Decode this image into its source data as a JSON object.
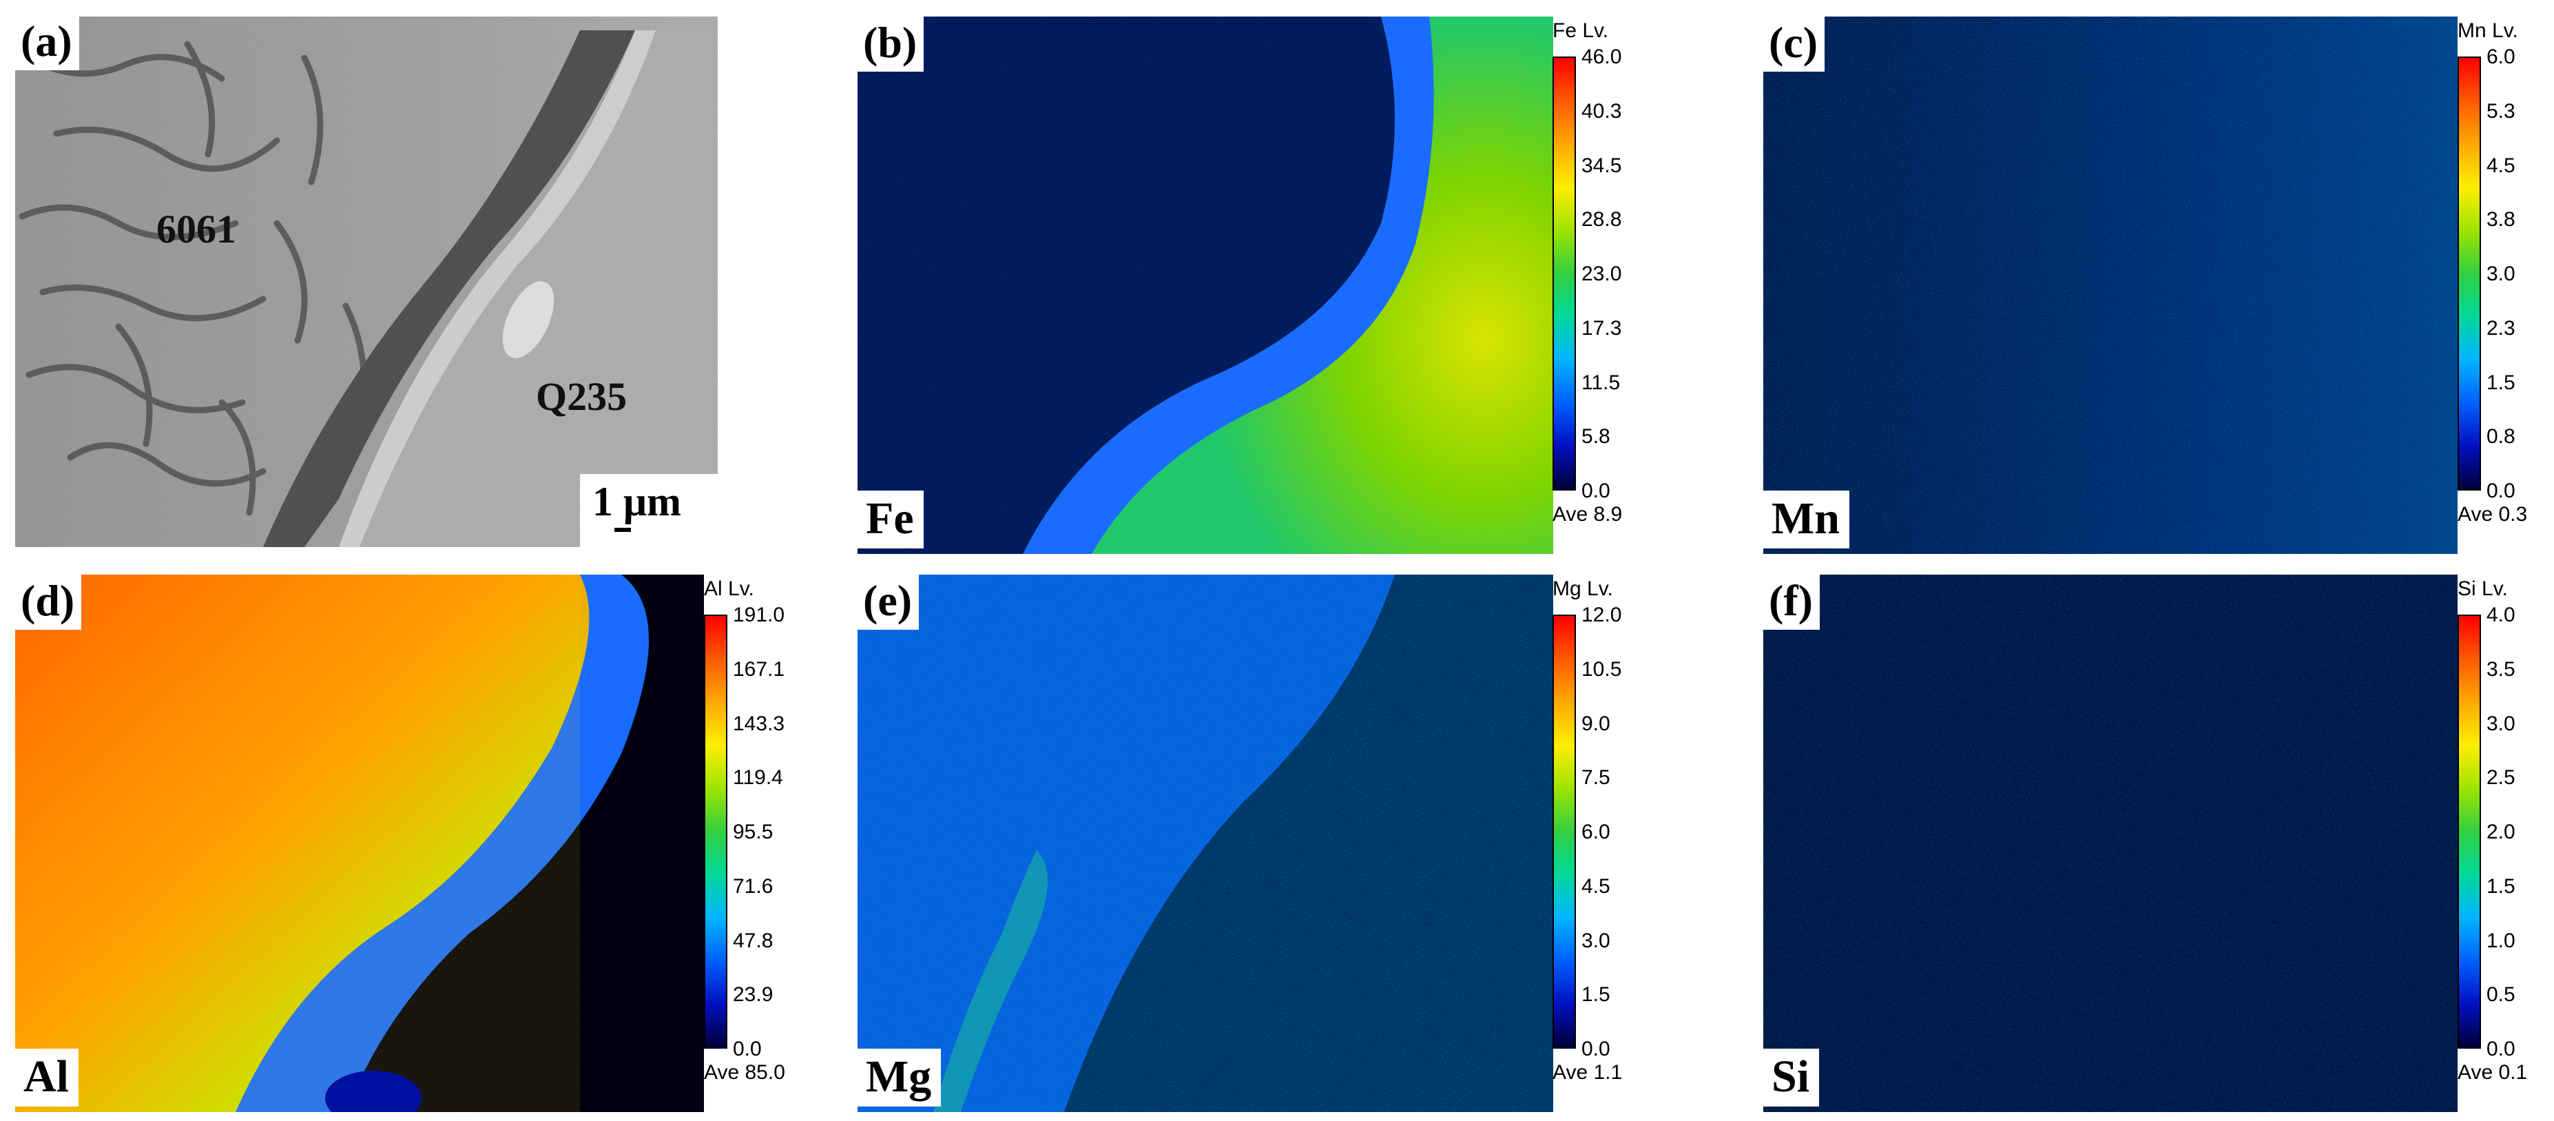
{
  "sem_panel": {
    "tag": "(a)",
    "labels": [
      "6061",
      "Q235"
    ],
    "scale_bar": "1 μm"
  },
  "colormap": [
    "#00003a",
    "#0010c0",
    "#0060ff",
    "#00b4ff",
    "#00d89a",
    "#30d040",
    "#9ee400",
    "#ffee00",
    "#ffa800",
    "#ff5a00",
    "#ff0000"
  ],
  "maps": [
    {
      "tag": "(b)",
      "element": "Fe",
      "title": "Fe  Lv.",
      "ticks": [
        "46.0",
        "40.3",
        "34.5",
        "28.8",
        "23.0",
        "17.3",
        "11.5",
        "5.8",
        "0.0"
      ],
      "average": "Ave 8.9"
    },
    {
      "tag": "(c)",
      "element": "Mn",
      "title": "Mn  Lv.",
      "ticks": [
        "6.0",
        "5.3",
        "4.5",
        "3.8",
        "3.0",
        "2.3",
        "1.5",
        "0.8",
        "0.0"
      ],
      "average": "Ave 0.3"
    },
    {
      "tag": "(d)",
      "element": "Al",
      "title": "Al  Lv.",
      "ticks": [
        "191.0",
        "167.1",
        "143.3",
        "119.4",
        "95.5",
        "71.6",
        "47.8",
        "23.9",
        "0.0"
      ],
      "average": "Ave 85.0"
    },
    {
      "tag": "(e)",
      "element": "Mg",
      "title": "Mg  Lv.",
      "ticks": [
        "12.0",
        "10.5",
        "9.0",
        "7.5",
        "6.0",
        "4.5",
        "3.0",
        "1.5",
        "0.0"
      ],
      "average": "Ave 1.1"
    },
    {
      "tag": "(f)",
      "element": "Si",
      "title": "Si  Lv.",
      "ticks": [
        "4.0",
        "3.5",
        "3.0",
        "2.5",
        "2.0",
        "1.5",
        "1.0",
        "0.5",
        "0.0"
      ],
      "average": "Ave 0.1"
    }
  ]
}
